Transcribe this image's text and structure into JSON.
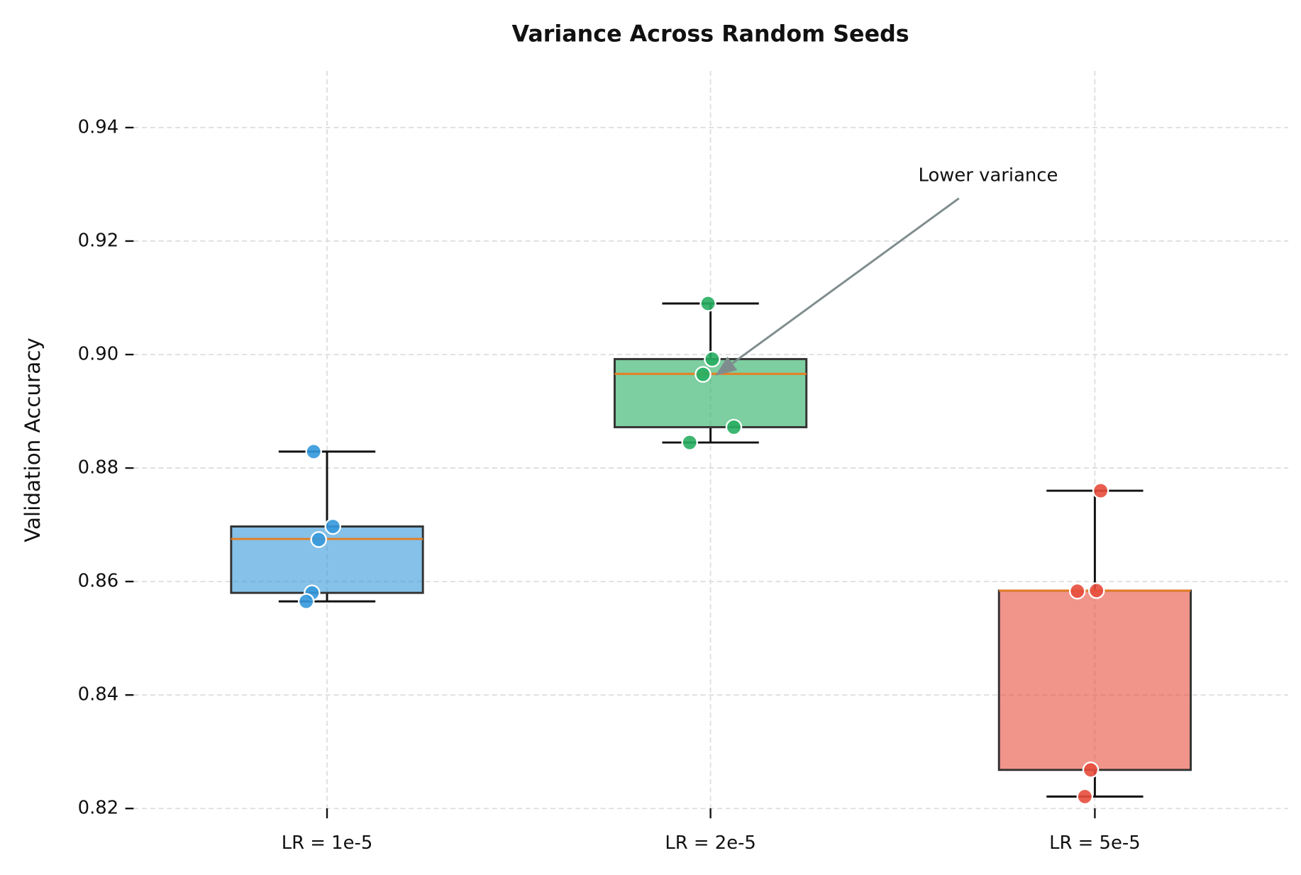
{
  "chart_data": {
    "type": "box",
    "title": "Variance Across Random Seeds",
    "y_label": "Validation Accuracy",
    "categories": [
      "LR = 1e-5",
      "LR = 2e-5",
      "LR = 5e-5"
    ],
    "boxes": [
      {
        "color": "#3498db",
        "whisker_low": 0.8565,
        "q1": 0.858,
        "median": 0.8675,
        "q3": 0.8697,
        "whisker_high": 0.8829,
        "points": [
          0.8829,
          0.8697,
          0.8674,
          0.858,
          0.8565
        ]
      },
      {
        "color": "#27ae60",
        "whisker_low": 0.8845,
        "q1": 0.8872,
        "median": 0.8966,
        "q3": 0.8992,
        "whisker_high": 0.909,
        "points": [
          0.909,
          0.8992,
          0.8965,
          0.8872,
          0.8845
        ]
      },
      {
        "color": "#e74c3c",
        "whisker_low": 0.8221,
        "q1": 0.8268,
        "median": 0.8584,
        "q3": 0.8584,
        "whisker_high": 0.876,
        "points": [
          0.876,
          0.8584,
          0.8583,
          0.8268,
          0.8221
        ]
      }
    ],
    "median_color": "#e67e22",
    "ylim": [
      0.819,
      0.95
    ],
    "yticks": [
      {
        "value": 0.82,
        "label": "0.82"
      },
      {
        "value": 0.84,
        "label": "0.84"
      },
      {
        "value": 0.86,
        "label": "0.86"
      },
      {
        "value": 0.88,
        "label": "0.88"
      },
      {
        "value": 0.9,
        "label": "0.90"
      },
      {
        "value": 0.92,
        "label": "0.92"
      },
      {
        "value": 0.94,
        "label": "0.94"
      }
    ],
    "grid": true,
    "annotation": {
      "text": "Lower variance",
      "target_box": 1,
      "target_value": 0.8965
    }
  }
}
